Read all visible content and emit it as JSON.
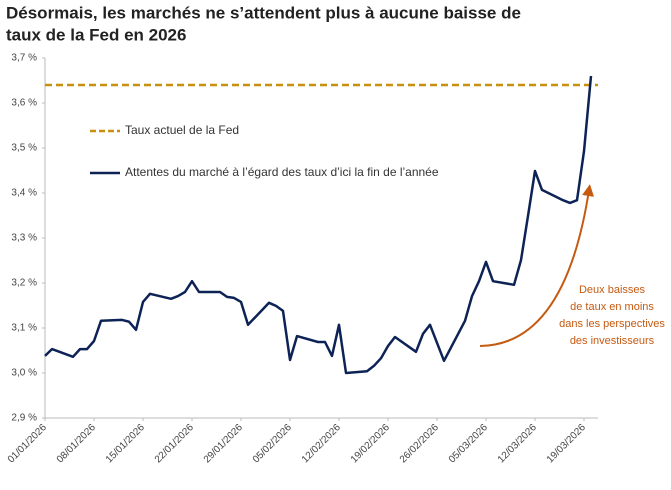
{
  "chart_data": {
    "type": "line",
    "title_lines": [
      "Désormais, les marchés ne s’attendent plus à aucune baisse de",
      "taux de la Fed en 2026"
    ],
    "x": [
      "2026-01-01",
      "2026-01-02",
      "2026-01-05",
      "2026-01-06",
      "2026-01-07",
      "2026-01-08",
      "2026-01-09",
      "2026-01-12",
      "2026-01-13",
      "2026-01-14",
      "2026-01-15",
      "2026-01-16",
      "2026-01-19",
      "2026-01-20",
      "2026-01-21",
      "2026-01-22",
      "2026-01-23",
      "2026-01-26",
      "2026-01-27",
      "2026-01-28",
      "2026-01-29",
      "2026-01-30",
      "2026-02-02",
      "2026-02-03",
      "2026-02-04",
      "2026-02-05",
      "2026-02-06",
      "2026-02-09",
      "2026-02-10",
      "2026-02-11",
      "2026-02-12",
      "2026-02-13",
      "2026-02-16",
      "2026-02-17",
      "2026-02-18",
      "2026-02-19",
      "2026-02-20",
      "2026-02-23",
      "2026-02-24",
      "2026-02-25",
      "2026-02-27",
      "2026-03-02",
      "2026-03-03",
      "2026-03-04",
      "2026-03-05",
      "2026-03-06",
      "2026-03-09",
      "2026-03-10",
      "2026-03-11",
      "2026-03-12",
      "2026-03-13",
      "2026-03-16",
      "2026-03-17",
      "2026-03-18",
      "2026-03-19",
      "2026-03-20"
    ],
    "series": [
      {
        "name": "Attentes du marché à l’égard des taux d’ici la fin de l’année",
        "color": "#0d2356",
        "values": [
          3.038,
          3.053,
          3.036,
          3.053,
          3.053,
          3.071,
          3.116,
          3.118,
          3.114,
          3.096,
          3.158,
          3.176,
          3.165,
          3.171,
          3.18,
          3.204,
          3.18,
          3.18,
          3.169,
          3.167,
          3.158,
          3.107,
          3.156,
          3.149,
          3.138,
          3.029,
          3.082,
          3.069,
          3.069,
          3.038,
          3.107,
          3.0,
          3.004,
          3.016,
          3.033,
          3.06,
          3.08,
          3.047,
          3.087,
          3.107,
          3.027,
          3.116,
          3.171,
          3.204,
          3.247,
          3.204,
          3.196,
          3.251,
          3.349,
          3.449,
          3.407,
          3.384,
          3.378,
          3.384,
          3.493,
          3.66
        ]
      }
    ],
    "reference_line": {
      "name": "Taux actuel de la Fed",
      "value": 3.64,
      "color": "#c8900f"
    },
    "xlim": [
      "2026-01-01",
      "2026-03-21"
    ],
    "xticks": [
      {
        "value": "2026-01-01",
        "label": "01/01/2026"
      },
      {
        "value": "2026-01-08",
        "label": "08/01/2026"
      },
      {
        "value": "2026-01-15",
        "label": "15/01/2026"
      },
      {
        "value": "2026-01-22",
        "label": "22/01/2026"
      },
      {
        "value": "2026-01-29",
        "label": "29/01/2026"
      },
      {
        "value": "2026-02-05",
        "label": "05/02/2026"
      },
      {
        "value": "2026-02-12",
        "label": "12/02/2026"
      },
      {
        "value": "2026-02-19",
        "label": "19/02/2026"
      },
      {
        "value": "2026-02-26",
        "label": "26/02/2026"
      },
      {
        "value": "2026-03-05",
        "label": "05/03/2026"
      },
      {
        "value": "2026-03-12",
        "label": "12/03/2026"
      },
      {
        "value": "2026-03-19",
        "label": "19/03/2026"
      }
    ],
    "ylim": [
      2.9,
      3.7
    ],
    "yticks": [
      {
        "value": 2.9,
        "label": "2,9 %"
      },
      {
        "value": 3.0,
        "label": "3,0 %"
      },
      {
        "value": 3.1,
        "label": "3,1 %"
      },
      {
        "value": 3.2,
        "label": "3,2 %"
      },
      {
        "value": 3.3,
        "label": "3,3 %"
      },
      {
        "value": 3.4,
        "label": "3,4 %"
      },
      {
        "value": 3.5,
        "label": "3,5 %"
      },
      {
        "value": 3.6,
        "label": "3,6 %"
      },
      {
        "value": 3.7,
        "label": "3,7 %"
      }
    ],
    "grid": false,
    "annotation": {
      "lines": [
        "Deux baisses",
        "de taux en moins",
        "dans les perspectives",
        "des investisseurs"
      ],
      "color": "#c55a11"
    }
  }
}
